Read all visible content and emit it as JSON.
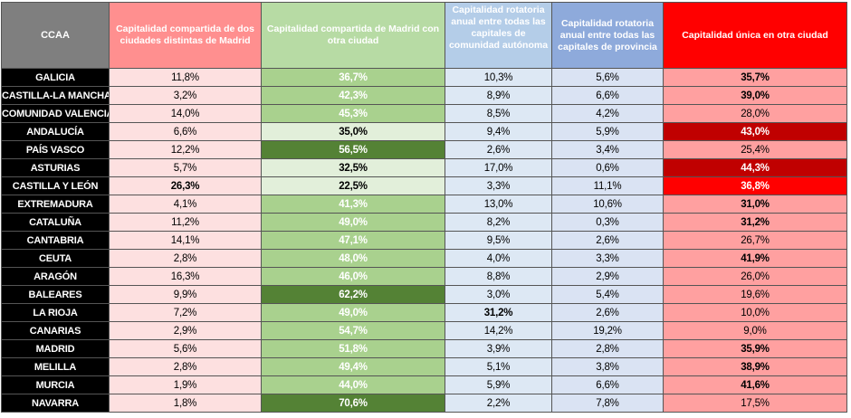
{
  "headers": [
    "CCAA",
    "Capitalidad compartida de dos ciudades distintas de Madrid",
    "Capitalidad compartida de Madrid con otra ciudad",
    "Capitalidad rotatoria anual entre todas las capitales de comunidad autónoma",
    "Capitalidad rotatoria anual entre todas las capitales de provincia",
    "Capitalidad única en otra ciudad"
  ],
  "colors": {
    "header_ccaa": "#7f7f7f",
    "header_two_cities": "#ff8f8f",
    "header_madrid_shared": "#b7dba4",
    "header_rotating_ccaa": "#b4cde8",
    "header_rotating_prov": "#8eaadb",
    "header_single": "#ff0000",
    "dark_green": "#548235",
    "dark_red": "#c00000"
  },
  "rows": [
    {
      "ccaa": "GALICIA",
      "v": [
        "11,8%",
        "36,7%",
        "10,3%",
        "5,6%",
        "35,7%"
      ],
      "s": [
        "",
        "",
        "",
        "",
        ""
      ],
      "b": [
        0,
        0,
        0,
        0,
        1
      ]
    },
    {
      "ccaa": "CASTILLA-LA MANCHA",
      "v": [
        "3,2%",
        "42,3%",
        "8,9%",
        "6,6%",
        "39,0%"
      ],
      "s": [
        "",
        "",
        "",
        "",
        ""
      ],
      "b": [
        0,
        0,
        0,
        0,
        1
      ]
    },
    {
      "ccaa": "COMUNIDAD VALENCIANA",
      "v": [
        "14,0%",
        "45,3%",
        "8,5%",
        "4,2%",
        "28,0%"
      ],
      "s": [
        "",
        "",
        "",
        "",
        ""
      ],
      "b": [
        0,
        0,
        0,
        0,
        0
      ]
    },
    {
      "ccaa": "ANDALUCÍA",
      "v": [
        "6,6%",
        "35,0%",
        "9,4%",
        "5,9%",
        "43,0%"
      ],
      "s": [
        "",
        "lt",
        "",
        "",
        "dr"
      ],
      "b": [
        0,
        1,
        0,
        0,
        1
      ]
    },
    {
      "ccaa": "PAÍS VASCO",
      "v": [
        "12,2%",
        "56,5%",
        "2,6%",
        "3,4%",
        "25,4%"
      ],
      "s": [
        "",
        "dk",
        "",
        "",
        ""
      ],
      "b": [
        0,
        0,
        0,
        0,
        0
      ]
    },
    {
      "ccaa": "ASTURIAS",
      "v": [
        "5,7%",
        "32,5%",
        "17,0%",
        "0,6%",
        "44,3%"
      ],
      "s": [
        "",
        "lt",
        "",
        "",
        "dr"
      ],
      "b": [
        0,
        1,
        0,
        0,
        1
      ]
    },
    {
      "ccaa": "CASTILLA Y LEÓN",
      "v": [
        "26,3%",
        "22,5%",
        "3,3%",
        "11,1%",
        "36,8%"
      ],
      "s": [
        "",
        "lt",
        "",
        "",
        "rd"
      ],
      "b": [
        1,
        0,
        0,
        0,
        1
      ]
    },
    {
      "ccaa": "EXTREMADURA",
      "v": [
        "4,1%",
        "41,3%",
        "13,0%",
        "10,6%",
        "31,0%"
      ],
      "s": [
        "",
        "",
        "",
        "",
        ""
      ],
      "b": [
        0,
        0,
        0,
        0,
        1
      ]
    },
    {
      "ccaa": "CATALUÑA",
      "v": [
        "11,2%",
        "49,0%",
        "8,2%",
        "0,3%",
        "31,2%"
      ],
      "s": [
        "",
        "",
        "",
        "",
        ""
      ],
      "b": [
        0,
        0,
        0,
        0,
        1
      ]
    },
    {
      "ccaa": "CANTABRIA",
      "v": [
        "14,1%",
        "47,1%",
        "9,5%",
        "2,6%",
        "26,7%"
      ],
      "s": [
        "",
        "",
        "",
        "",
        ""
      ],
      "b": [
        0,
        0,
        0,
        0,
        0
      ]
    },
    {
      "ccaa": "CEUTA",
      "v": [
        "2,8%",
        "48,0%",
        "4,0%",
        "3,3%",
        "41,9%"
      ],
      "s": [
        "",
        "",
        "",
        "",
        ""
      ],
      "b": [
        0,
        0,
        0,
        0,
        1
      ]
    },
    {
      "ccaa": "ARAGÓN",
      "v": [
        "16,3%",
        "46,0%",
        "8,8%",
        "2,9%",
        "26,0%"
      ],
      "s": [
        "",
        "",
        "",
        "",
        ""
      ],
      "b": [
        0,
        0,
        0,
        0,
        0
      ]
    },
    {
      "ccaa": "BALEARES",
      "v": [
        "9,9%",
        "62,2%",
        "3,0%",
        "5,4%",
        "19,6%"
      ],
      "s": [
        "",
        "dk",
        "",
        "",
        ""
      ],
      "b": [
        0,
        0,
        0,
        0,
        0
      ]
    },
    {
      "ccaa": "LA RIOJA",
      "v": [
        "7,2%",
        "49,0%",
        "31,2%",
        "2,6%",
        "10,0%"
      ],
      "s": [
        "",
        "",
        "",
        "",
        ""
      ],
      "b": [
        0,
        0,
        1,
        0,
        0
      ]
    },
    {
      "ccaa": "CANARIAS",
      "v": [
        "2,9%",
        "54,7%",
        "14,2%",
        "19,2%",
        "9,0%"
      ],
      "s": [
        "",
        "",
        "",
        "",
        ""
      ],
      "b": [
        0,
        0,
        0,
        0,
        0
      ]
    },
    {
      "ccaa": "MADRID",
      "v": [
        "5,6%",
        "51,8%",
        "3,9%",
        "2,8%",
        "35,9%"
      ],
      "s": [
        "",
        "",
        "",
        "",
        ""
      ],
      "b": [
        0,
        0,
        0,
        0,
        1
      ]
    },
    {
      "ccaa": "MELILLA",
      "v": [
        "2,8%",
        "49,4%",
        "5,1%",
        "3,8%",
        "38,9%"
      ],
      "s": [
        "",
        "",
        "",
        "",
        ""
      ],
      "b": [
        0,
        0,
        0,
        0,
        1
      ]
    },
    {
      "ccaa": "MURCIA",
      "v": [
        "1,9%",
        "44,0%",
        "5,9%",
        "6,6%",
        "41,6%"
      ],
      "s": [
        "",
        "",
        "",
        "",
        ""
      ],
      "b": [
        0,
        0,
        0,
        0,
        1
      ]
    },
    {
      "ccaa": "NAVARRA",
      "v": [
        "1,8%",
        "70,6%",
        "2,2%",
        "7,8%",
        "17,5%"
      ],
      "s": [
        "",
        "dk",
        "",
        "",
        ""
      ],
      "b": [
        0,
        0,
        0,
        0,
        0
      ]
    }
  ]
}
